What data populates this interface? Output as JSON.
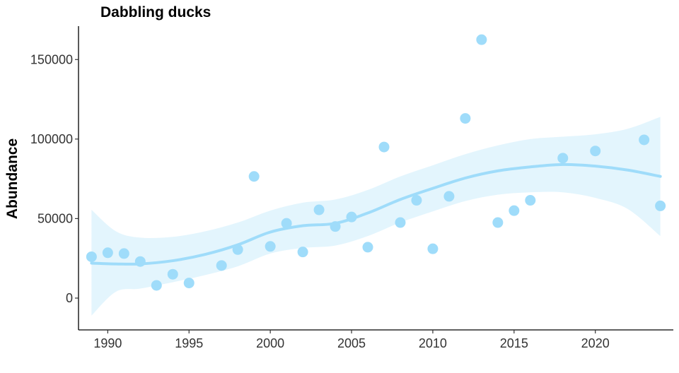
{
  "chart_data": {
    "type": "scatter",
    "title": "Dabbling ducks",
    "xlabel": "",
    "ylabel": "Abundance",
    "xlim": [
      1988.2,
      2024.8
    ],
    "ylim": [
      -20000,
      171000
    ],
    "x_ticks": [
      1990,
      1995,
      2000,
      2005,
      2010,
      2015,
      2020
    ],
    "y_ticks": [
      0,
      50000,
      100000,
      150000
    ],
    "x_tick_labels": [
      "1990",
      "1995",
      "2000",
      "2005",
      "2010",
      "2015",
      "2020"
    ],
    "y_tick_labels": [
      "0",
      "50000",
      "100000",
      "150000"
    ],
    "grid": false,
    "colors": {
      "points": "#9fdcfa",
      "smooth_line": "#9fdcfa",
      "confidence_band": "#d9f2fc"
    },
    "points": [
      {
        "x": 1989,
        "y": 26000
      },
      {
        "x": 1990,
        "y": 28500
      },
      {
        "x": 1991,
        "y": 28000
      },
      {
        "x": 1992,
        "y": 23000
      },
      {
        "x": 1993,
        "y": 8000
      },
      {
        "x": 1994,
        "y": 15000
      },
      {
        "x": 1995,
        "y": 9500
      },
      {
        "x": 1997,
        "y": 20500
      },
      {
        "x": 1998,
        "y": 30500
      },
      {
        "x": 1999,
        "y": 76500
      },
      {
        "x": 2000,
        "y": 32500
      },
      {
        "x": 2001,
        "y": 47000
      },
      {
        "x": 2002,
        "y": 29000
      },
      {
        "x": 2003,
        "y": 55500
      },
      {
        "x": 2004,
        "y": 45000
      },
      {
        "x": 2005,
        "y": 51000
      },
      {
        "x": 2006,
        "y": 32000
      },
      {
        "x": 2007,
        "y": 95000
      },
      {
        "x": 2008,
        "y": 47500
      },
      {
        "x": 2009,
        "y": 61500
      },
      {
        "x": 2010,
        "y": 31000
      },
      {
        "x": 2011,
        "y": 64000
      },
      {
        "x": 2012,
        "y": 113000
      },
      {
        "x": 2013,
        "y": 162500
      },
      {
        "x": 2014,
        "y": 47500
      },
      {
        "x": 2015,
        "y": 55000
      },
      {
        "x": 2016,
        "y": 61500
      },
      {
        "x": 2018,
        "y": 88000
      },
      {
        "x": 2020,
        "y": 92500
      },
      {
        "x": 2023,
        "y": 99500
      },
      {
        "x": 2024,
        "y": 58000
      }
    ],
    "smooth": [
      {
        "x": 1989,
        "y": 22000,
        "lo": -11000,
        "hi": 55500
      },
      {
        "x": 1990.5,
        "y": 21500,
        "lo": 4000,
        "hi": 42000
      },
      {
        "x": 1992,
        "y": 21500,
        "lo": 6000,
        "hi": 38000
      },
      {
        "x": 1994,
        "y": 23500,
        "lo": 10000,
        "hi": 38500
      },
      {
        "x": 1996,
        "y": 27500,
        "lo": 14500,
        "hi": 42000
      },
      {
        "x": 1998,
        "y": 33500,
        "lo": 20000,
        "hi": 47500
      },
      {
        "x": 2000,
        "y": 41500,
        "lo": 28000,
        "hi": 55000
      },
      {
        "x": 2002,
        "y": 45500,
        "lo": 31500,
        "hi": 60000
      },
      {
        "x": 2004,
        "y": 47000,
        "lo": 33000,
        "hi": 62000
      },
      {
        "x": 2006,
        "y": 53500,
        "lo": 39000,
        "hi": 68000
      },
      {
        "x": 2008,
        "y": 62000,
        "lo": 47500,
        "hi": 76500
      },
      {
        "x": 2010,
        "y": 69000,
        "lo": 54500,
        "hi": 83500
      },
      {
        "x": 2012,
        "y": 75500,
        "lo": 61000,
        "hi": 90500
      },
      {
        "x": 2014,
        "y": 80000,
        "lo": 65000,
        "hi": 96000
      },
      {
        "x": 2016,
        "y": 82500,
        "lo": 66500,
        "hi": 100000
      },
      {
        "x": 2018,
        "y": 84000,
        "lo": 66500,
        "hi": 101500
      },
      {
        "x": 2020,
        "y": 83000,
        "lo": 63000,
        "hi": 103000
      },
      {
        "x": 2022,
        "y": 80500,
        "lo": 56000,
        "hi": 106500
      },
      {
        "x": 2024,
        "y": 76500,
        "lo": 39000,
        "hi": 114000
      }
    ]
  }
}
